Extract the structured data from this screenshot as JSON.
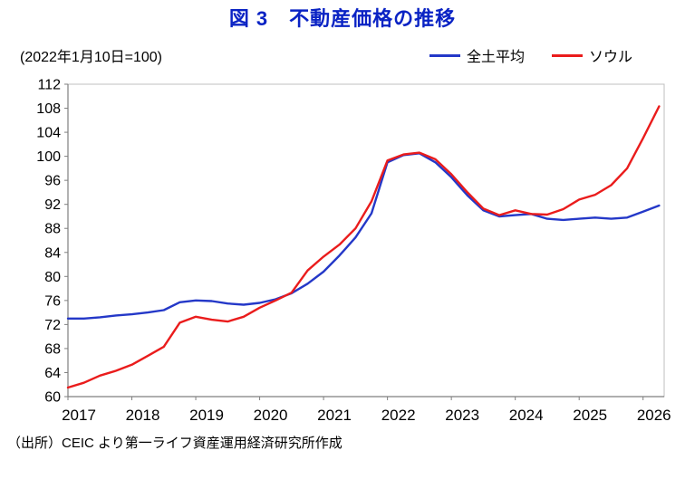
{
  "chart_data": {
    "type": "line",
    "title": "図 3　不動産価格の推移",
    "subtitle": "(2022年1月10日=100)",
    "source": "（出所）CEIC より第一ライフ資産運用経済研究所作成",
    "xlabel": "",
    "ylabel": "",
    "ylim": [
      60,
      112
    ],
    "xlim": [
      2017,
      2026.33
    ],
    "yticks": [
      60,
      64,
      68,
      72,
      76,
      80,
      84,
      88,
      92,
      96,
      100,
      104,
      108,
      112
    ],
    "xticks": [
      2017,
      2018,
      2019,
      2020,
      2021,
      2022,
      2023,
      2024,
      2025,
      2026
    ],
    "grid": false,
    "legend_position": "top-right",
    "x": [
      2017.0,
      2017.25,
      2017.5,
      2017.75,
      2018.0,
      2018.25,
      2018.5,
      2018.75,
      2019.0,
      2019.25,
      2019.5,
      2019.75,
      2020.0,
      2020.25,
      2020.5,
      2020.75,
      2021.0,
      2021.25,
      2021.5,
      2021.75,
      2022.0,
      2022.25,
      2022.5,
      2022.75,
      2023.0,
      2023.25,
      2023.5,
      2023.75,
      2024.0,
      2024.25,
      2024.5,
      2024.75,
      2025.0,
      2025.25,
      2025.5,
      2025.75,
      2026.0,
      2026.25
    ],
    "series": [
      {
        "name": "全土平均",
        "color": "#2438c8",
        "values": [
          73.0,
          73.0,
          73.2,
          73.5,
          73.7,
          74.0,
          74.4,
          75.7,
          76.0,
          75.9,
          75.5,
          75.3,
          75.6,
          76.2,
          77.2,
          78.8,
          80.8,
          83.5,
          86.5,
          90.5,
          99.0,
          100.2,
          100.5,
          99.0,
          96.5,
          93.5,
          91.0,
          90.0,
          90.2,
          90.4,
          89.6,
          89.4,
          89.6,
          89.8,
          89.6,
          89.8,
          90.8,
          91.8
        ]
      },
      {
        "name": "ソウル",
        "color": "#ea1c1c",
        "values": [
          61.5,
          62.3,
          63.5,
          64.3,
          65.3,
          66.8,
          68.3,
          72.3,
          73.3,
          72.8,
          72.5,
          73.3,
          74.8,
          76.0,
          77.3,
          81.0,
          83.3,
          85.3,
          88.0,
          92.5,
          99.3,
          100.3,
          100.6,
          99.5,
          97.0,
          94.0,
          91.3,
          90.2,
          91.0,
          90.4,
          90.3,
          91.2,
          92.8,
          93.6,
          95.2,
          98.0,
          103.0,
          108.3
        ]
      }
    ]
  }
}
